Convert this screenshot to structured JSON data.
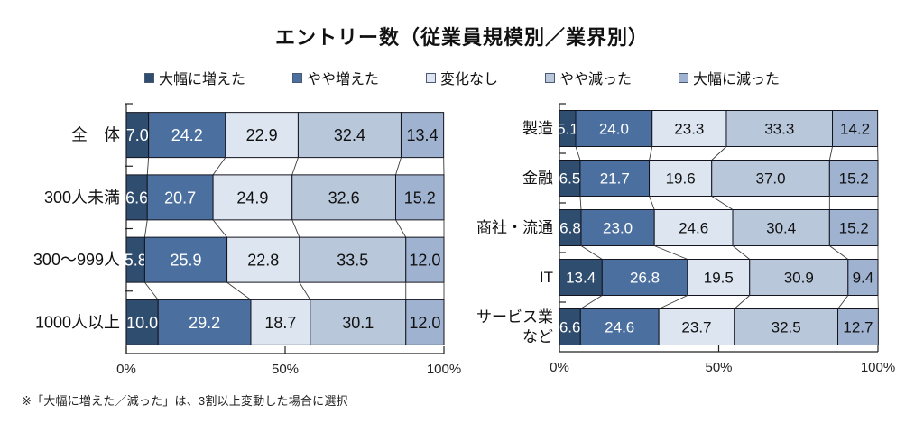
{
  "title": "エントリー数（従業員規模別／業界別）",
  "footnote": "※「大幅に増えた／減った」は、3割以上変動した場合に選択",
  "legend": [
    {
      "label": "大幅に増えた",
      "color": "#2f4d6f"
    },
    {
      "label": "やや増えた",
      "color": "#4b6f9e"
    },
    {
      "label": "変化なし",
      "color": "#dce5f0"
    },
    {
      "label": "やや減った",
      "color": "#b9c7db"
    },
    {
      "label": "大幅に減った",
      "color": "#9fb3d1"
    }
  ],
  "colors": {
    "segment_border": "#14141e",
    "axis": "#222222",
    "connector": "#3a3a3a",
    "value_text_dark_segments": "#ffffff",
    "value_text_light_segments": "#111111"
  },
  "chart_data": [
    {
      "type": "bar",
      "stacked": true,
      "orientation": "horizontal",
      "group": "employee_size",
      "categories": [
        "全　体",
        "300人未満",
        "300〜999人",
        "1000人以上"
      ],
      "series": [
        {
          "name": "大幅に増えた",
          "values": [
            7.0,
            6.6,
            5.8,
            10.0
          ]
        },
        {
          "name": "やや増えた",
          "values": [
            24.2,
            20.7,
            25.9,
            29.2
          ]
        },
        {
          "name": "変化なし",
          "values": [
            22.9,
            24.9,
            22.8,
            18.7
          ]
        },
        {
          "name": "やや減った",
          "values": [
            32.4,
            32.6,
            33.5,
            30.1
          ]
        },
        {
          "name": "大幅に減った",
          "values": [
            13.4,
            15.2,
            12.0,
            12.0
          ]
        }
      ],
      "xlim": [
        0,
        100
      ],
      "x_ticks": [
        {
          "value": 0,
          "label": "0%"
        },
        {
          "value": 50,
          "label": "50%"
        },
        {
          "value": 100,
          "label": "100%"
        }
      ],
      "grid": false,
      "legend_position": "top"
    },
    {
      "type": "bar",
      "stacked": true,
      "orientation": "horizontal",
      "group": "industry",
      "categories": [
        "製造",
        "金融",
        "商社・流通",
        "IT",
        "サービス業\nなど"
      ],
      "series": [
        {
          "name": "大幅に増えた",
          "values": [
            5.1,
            6.5,
            6.8,
            13.4,
            6.6
          ]
        },
        {
          "name": "やや増えた",
          "values": [
            24.0,
            21.7,
            23.0,
            26.8,
            24.6
          ]
        },
        {
          "name": "変化なし",
          "values": [
            23.3,
            19.6,
            24.6,
            19.5,
            23.7
          ]
        },
        {
          "name": "やや減った",
          "values": [
            33.3,
            37.0,
            30.4,
            30.9,
            32.5
          ]
        },
        {
          "name": "大幅に減った",
          "values": [
            14.2,
            15.2,
            15.2,
            9.4,
            12.7
          ]
        }
      ],
      "xlim": [
        0,
        100
      ],
      "x_ticks": [
        {
          "value": 0,
          "label": "0%"
        },
        {
          "value": 50,
          "label": "50%"
        },
        {
          "value": 100,
          "label": "100%"
        }
      ],
      "grid": false,
      "legend_position": "top"
    }
  ]
}
